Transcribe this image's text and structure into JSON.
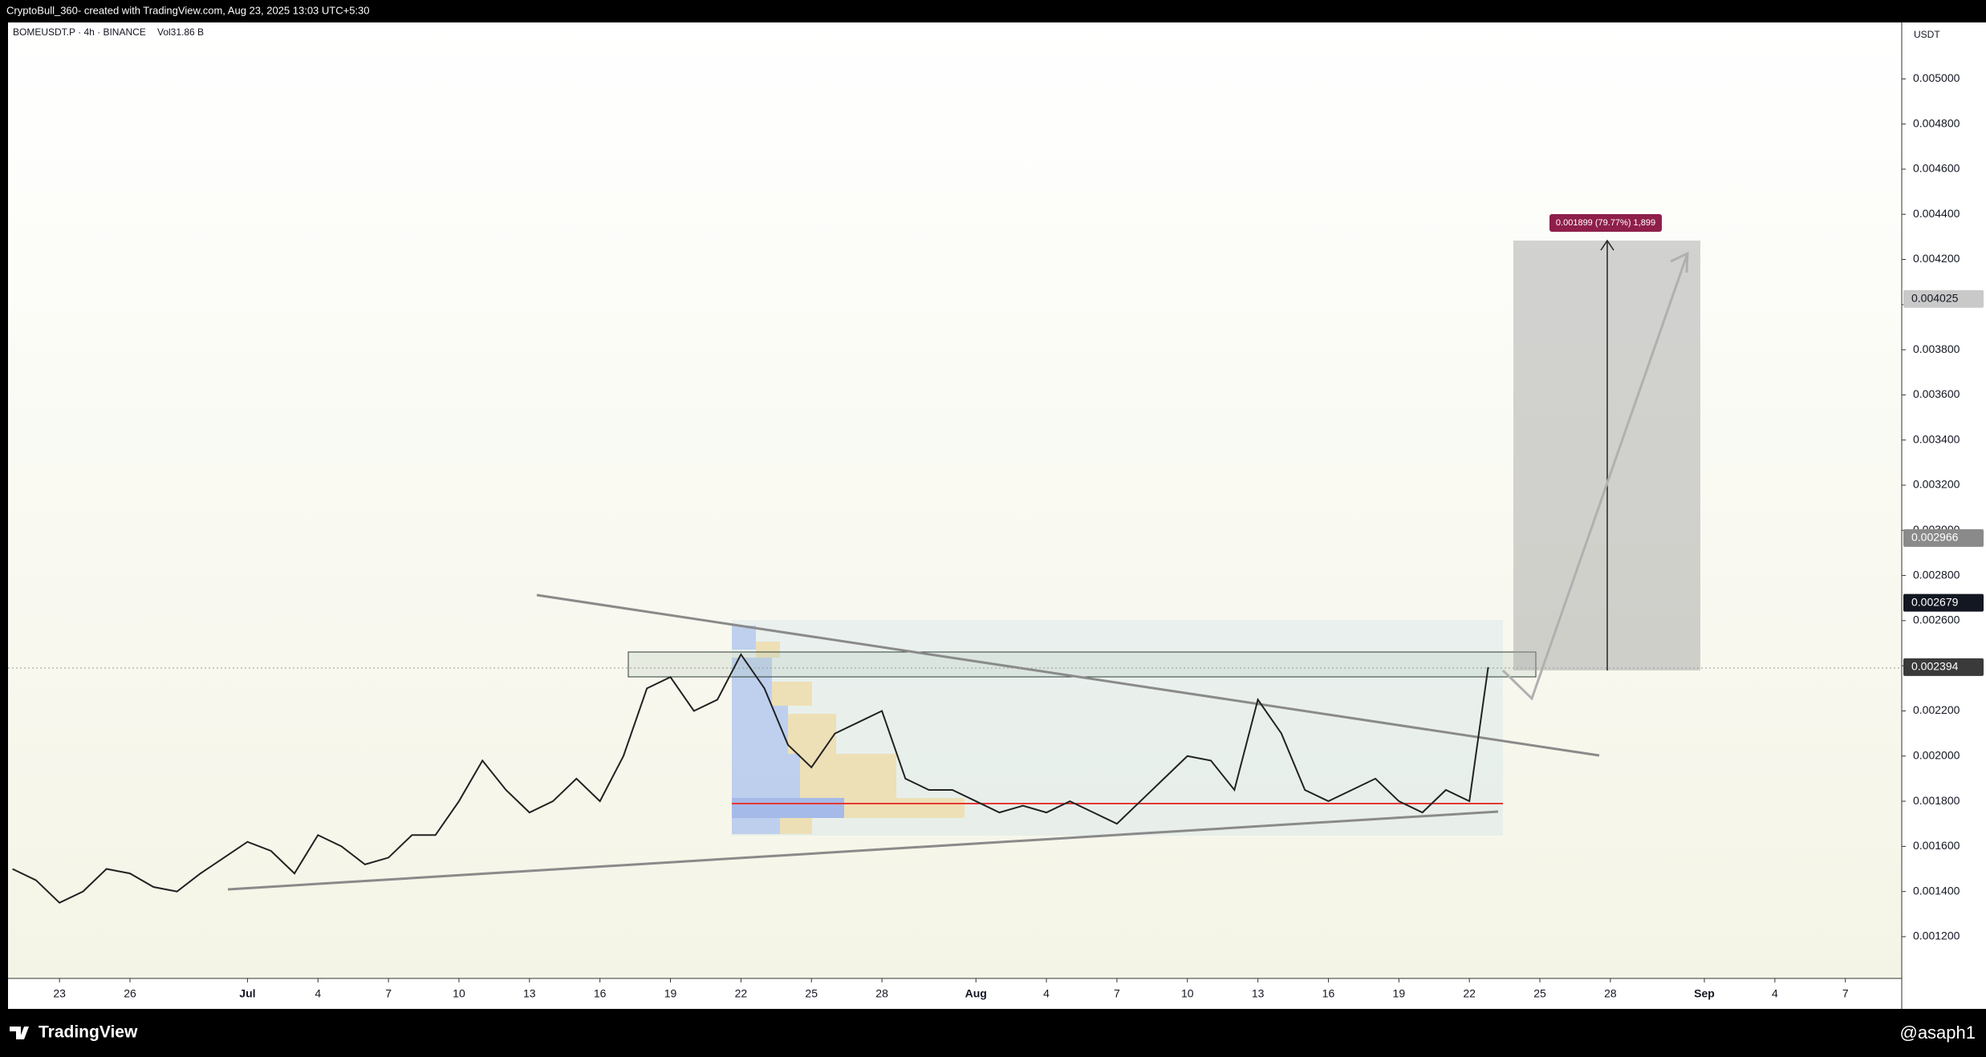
{
  "header": {
    "caption": "CryptoBull_360- created with TradingView.com, Aug 23, 2025 13:03 UTC+5:30"
  },
  "symbol": "BOMEUSDT.P · 4h · BINANCE",
  "volume": "Vol31.86 B",
  "currency": "USDT",
  "measure_label": "0.001899 (79.77%) 1,899",
  "footer": {
    "brand": "TradingView",
    "user": "@asaph1"
  },
  "chart_data": {
    "type": "line",
    "color": "#222222",
    "x": [
      -2,
      -1,
      0,
      1,
      2,
      3,
      4,
      5,
      6,
      7,
      8,
      9,
      10,
      11,
      12,
      13,
      14,
      15,
      16,
      17,
      18,
      19,
      20,
      21,
      22,
      23,
      24,
      25,
      26,
      27,
      28,
      29,
      30,
      31,
      32,
      33,
      34,
      35,
      36,
      37,
      38,
      39,
      40,
      41,
      42,
      43,
      44,
      45,
      46,
      47,
      48,
      49,
      50,
      51,
      52,
      53,
      54,
      55,
      56,
      57,
      58,
      59,
      60,
      60.8
    ],
    "values": [
      0.0015,
      0.00145,
      0.00135,
      0.0014,
      0.0015,
      0.00148,
      0.00142,
      0.0014,
      0.00148,
      0.00155,
      0.00162,
      0.00158,
      0.00148,
      0.00165,
      0.0016,
      0.00152,
      0.00155,
      0.00165,
      0.00165,
      0.0018,
      0.00198,
      0.00185,
      0.00175,
      0.0018,
      0.0019,
      0.0018,
      0.002,
      0.0023,
      0.00235,
      0.0022,
      0.00225,
      0.00245,
      0.0023,
      0.00205,
      0.00195,
      0.0021,
      0.00215,
      0.0022,
      0.0019,
      0.00185,
      0.00185,
      0.0018,
      0.00175,
      0.00178,
      0.00175,
      0.0018,
      0.00175,
      0.0017,
      0.0018,
      0.0019,
      0.002,
      0.00198,
      0.00185,
      0.00225,
      0.0021,
      0.00185,
      0.0018,
      0.00185,
      0.0019,
      0.0018,
      0.00175,
      0.00185,
      0.0018,
      0.002394
    ],
    "xlim": [
      -2.19,
      78.4
    ],
    "ylim": [
      0.001015,
      0.00525
    ],
    "xticks": [
      {
        "value": 0,
        "label": "23"
      },
      {
        "value": 3,
        "label": "26"
      },
      {
        "value": 8,
        "label": "Jul"
      },
      {
        "value": 11,
        "label": "4"
      },
      {
        "value": 14,
        "label": "7"
      },
      {
        "value": 17,
        "label": "10"
      },
      {
        "value": 20,
        "label": "13"
      },
      {
        "value": 23,
        "label": "16"
      },
      {
        "value": 26,
        "label": "19"
      },
      {
        "value": 29,
        "label": "22"
      },
      {
        "value": 32,
        "label": "25"
      },
      {
        "value": 35,
        "label": "28"
      },
      {
        "value": 39,
        "label": "Aug"
      },
      {
        "value": 42,
        "label": "4"
      },
      {
        "value": 45,
        "label": "7"
      },
      {
        "value": 48,
        "label": "10"
      },
      {
        "value": 51,
        "label": "13"
      },
      {
        "value": 54,
        "label": "16"
      },
      {
        "value": 57,
        "label": "19"
      },
      {
        "value": 60,
        "label": "22"
      },
      {
        "value": 63,
        "label": "25"
      },
      {
        "value": 66,
        "label": "28"
      },
      {
        "value": 70,
        "label": "Sep"
      },
      {
        "value": 73,
        "label": "4"
      },
      {
        "value": 76,
        "label": "7"
      }
    ],
    "yticks": [
      {
        "value": 0.0012,
        "label": "0.001200"
      },
      {
        "value": 0.0014,
        "label": "0.001400"
      },
      {
        "value": 0.0016,
        "label": "0.001600"
      },
      {
        "value": 0.0018,
        "label": "0.001800"
      },
      {
        "value": 0.002,
        "label": "0.002000"
      },
      {
        "value": 0.0022,
        "label": "0.002200"
      },
      {
        "value": 0.0024,
        "label": "0.002400"
      },
      {
        "value": 0.0026,
        "label": "0.002600"
      },
      {
        "value": 0.0028,
        "label": "0.002800"
      },
      {
        "value": 0.003,
        "label": "0.003000"
      },
      {
        "value": 0.0032,
        "label": "0.003200"
      },
      {
        "value": 0.0034,
        "label": "0.003400"
      },
      {
        "value": 0.0036,
        "label": "0.003600"
      },
      {
        "value": 0.0038,
        "label": "0.003800"
      },
      {
        "value": 0.004,
        "label": "0.004000"
      },
      {
        "value": 0.0042,
        "label": "0.004200"
      },
      {
        "value": 0.0044,
        "label": "0.004400"
      },
      {
        "value": 0.0046,
        "label": "0.004600"
      },
      {
        "value": 0.0048,
        "label": "0.004800"
      },
      {
        "value": 0.005,
        "label": "0.005000"
      }
    ],
    "price_tags": [
      {
        "value": 0.004025,
        "color": "#c9c9c9"
      },
      {
        "value": 0.002966,
        "color": "#8a8a8a"
      },
      {
        "value": 0.002679,
        "color": "#131722"
      },
      {
        "value": 0.002394,
        "color": "#3a3a3a"
      }
    ]
  }
}
